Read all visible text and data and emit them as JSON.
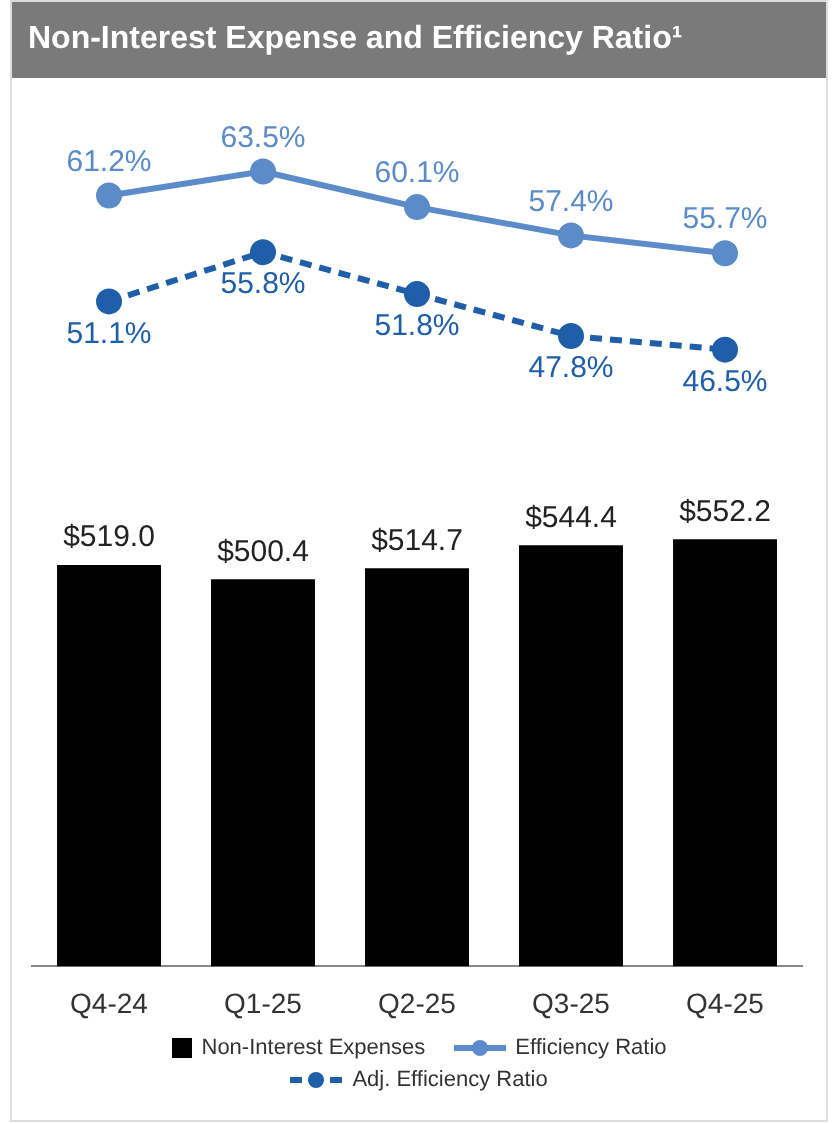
{
  "chart_data": [
    {
      "type": "line",
      "title": "Non-Interest Expense and Efficiency Ratio¹",
      "categories": [
        null,
        null,
        null,
        null,
        null
      ],
      "tick_labels": false,
      "legend": "bottom",
      "series": [
        {
          "name": "Efficiency Ratio",
          "color": "#5b8bc8",
          "marker": "circle",
          "line_style": "solid",
          "values": [
            61.2,
            63.5,
            60.1,
            57.4,
            55.7
          ],
          "value_labels": [
            "61.2%",
            "63.5%",
            "60.1%",
            "57.4%",
            "55.7%"
          ]
        },
        {
          "name": "Adj. Efficiency Ratio",
          "color": "#1f5ea8",
          "marker": "circle",
          "line_style": "dashed",
          "values": [
            51.1,
            55.8,
            51.8,
            47.8,
            46.5
          ],
          "value_labels": [
            "51.1%",
            "55.8%",
            "51.8%",
            "47.8%",
            "46.5%"
          ]
        }
      ]
    },
    {
      "type": "bar",
      "categories": [
        "Q4-24",
        "Q1-25",
        "Q2-25",
        "Q3-25",
        "Q4-25"
      ],
      "tick_labels": "x",
      "legend": "bottom",
      "series": [
        {
          "name": "Non-Interest Expenses",
          "type": "bar",
          "color": "#000000",
          "values": [
            519.0,
            500.4,
            514.7,
            544.4,
            552.2
          ],
          "value_labels": [
            "$519.0",
            "$500.4",
            "$514.7",
            "$544.4",
            "$552.2"
          ]
        }
      ]
    }
  ]
}
